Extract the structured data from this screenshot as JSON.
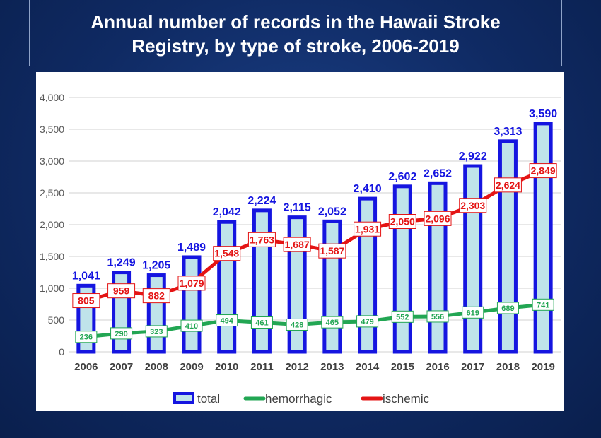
{
  "title": "Annual number of records in the Hawaii Stroke Registry, by type of stroke, 2006-2019",
  "colors": {
    "total_border": "#1515e0",
    "total_fill": "#bfe3ea",
    "hemorrhagic": "#22a653",
    "ischemic": "#e41414",
    "background": "#0f2a63"
  },
  "chart_data": {
    "type": "bar",
    "categories": [
      "2006",
      "2007",
      "2008",
      "2009",
      "2010",
      "2011",
      "2012",
      "2013",
      "2014",
      "2015",
      "2016",
      "2017",
      "2018",
      "2019"
    ],
    "ylim": [
      0,
      4000
    ],
    "yticks": [
      0,
      500,
      1000,
      1500,
      2000,
      2500,
      3000,
      3500,
      4000
    ],
    "ytick_labels": [
      "0",
      "500",
      "1,000",
      "1,500",
      "2,000",
      "2,500",
      "3,000",
      "3,500",
      "4,000"
    ],
    "grid": true,
    "legend_position": "bottom",
    "series": [
      {
        "name": "total",
        "type": "bar",
        "values": [
          1041,
          1249,
          1205,
          1489,
          2042,
          2224,
          2115,
          2052,
          2410,
          2602,
          2652,
          2922,
          3313,
          3590
        ],
        "labels": [
          "1,041",
          "1,249",
          "1,205",
          "1,489",
          "2,042",
          "2,224",
          "2,115",
          "2,052",
          "2,410",
          "2,602",
          "2,652",
          "2,922",
          "3,313",
          "3,590"
        ]
      },
      {
        "name": "hemorrhagic",
        "type": "line",
        "values": [
          236,
          290,
          323,
          410,
          494,
          461,
          428,
          465,
          479,
          552,
          556,
          619,
          689,
          741
        ],
        "labels": [
          "236",
          "290",
          "323",
          "410",
          "494",
          "461",
          "428",
          "465",
          "479",
          "552",
          "556",
          "619",
          "689",
          "741"
        ]
      },
      {
        "name": "ischemic",
        "type": "line",
        "values": [
          805,
          959,
          882,
          1079,
          1548,
          1763,
          1687,
          1587,
          1931,
          2050,
          2096,
          2303,
          2624,
          2849
        ],
        "labels": [
          "805",
          "959",
          "882",
          "1,079",
          "1,548",
          "1,763",
          "1,687",
          "1,587",
          "1,931",
          "2,050",
          "2,096",
          "2,303",
          "2,624",
          "2,849"
        ]
      }
    ]
  }
}
